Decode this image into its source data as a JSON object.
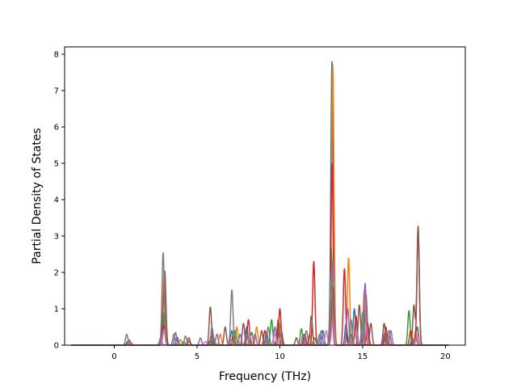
{
  "chart_data": {
    "type": "line",
    "title": "",
    "xlabel": "Frequency (THz)",
    "ylabel": "Partial Density of States",
    "xlim": [
      -3.0,
      21.2
    ],
    "ylim": [
      0,
      8.2
    ],
    "xticks": [
      0,
      5,
      10,
      15,
      20
    ],
    "yticks": [
      0,
      1,
      2,
      3,
      4,
      5,
      6,
      7,
      8
    ],
    "grid": false,
    "legend": "none",
    "x_range": [
      -2.6,
      20.2
    ],
    "sigma": 0.07,
    "series": [
      {
        "color": "#1f77b4",
        "peaks": [
          [
            0.9,
            0.12
          ],
          [
            2.9,
            0.2
          ],
          [
            3.05,
            0.9
          ],
          [
            3.8,
            0.22
          ],
          [
            5.8,
            0.15
          ],
          [
            7.1,
            0.4
          ],
          [
            8.0,
            0.5
          ],
          [
            9.2,
            0.35
          ],
          [
            9.9,
            0.45
          ],
          [
            11.5,
            0.25
          ],
          [
            12.6,
            0.4
          ],
          [
            13.15,
            7.8
          ],
          [
            14.0,
            0.6
          ],
          [
            14.5,
            1.0
          ],
          [
            15.2,
            1.4
          ],
          [
            16.4,
            0.3
          ],
          [
            18.3,
            0.5
          ]
        ]
      },
      {
        "color": "#ff7f0e",
        "peaks": [
          [
            1.0,
            0.08
          ],
          [
            3.0,
            1.9
          ],
          [
            4.0,
            0.15
          ],
          [
            6.4,
            0.3
          ],
          [
            7.4,
            0.5
          ],
          [
            8.6,
            0.5
          ],
          [
            10.0,
            0.6
          ],
          [
            11.8,
            0.3
          ],
          [
            13.2,
            7.7
          ],
          [
            14.15,
            2.4
          ],
          [
            15.1,
            1.5
          ],
          [
            16.5,
            0.3
          ],
          [
            18.2,
            0.4
          ]
        ]
      },
      {
        "color": "#2ca02c",
        "peaks": [
          [
            0.8,
            0.1
          ],
          [
            3.0,
            0.75
          ],
          [
            4.2,
            0.1
          ],
          [
            6.0,
            0.2
          ],
          [
            7.3,
            0.4
          ],
          [
            8.3,
            0.35
          ],
          [
            9.5,
            0.7
          ],
          [
            11.3,
            0.45
          ],
          [
            12.1,
            0.2
          ],
          [
            13.1,
            2.7
          ],
          [
            14.3,
            0.3
          ],
          [
            15.0,
            0.6
          ],
          [
            16.3,
            0.2
          ],
          [
            17.8,
            0.95
          ]
        ]
      },
      {
        "color": "#d62728",
        "peaks": [
          [
            3.0,
            0.55
          ],
          [
            4.5,
            0.1
          ],
          [
            5.9,
            0.25
          ],
          [
            7.2,
            0.3
          ],
          [
            8.1,
            0.7
          ],
          [
            9.1,
            0.4
          ],
          [
            10.0,
            1.0
          ],
          [
            11.5,
            0.3
          ],
          [
            12.05,
            2.3
          ],
          [
            13.15,
            5.0
          ],
          [
            13.9,
            2.1
          ],
          [
            14.6,
            0.8
          ],
          [
            15.3,
            0.6
          ],
          [
            16.4,
            0.5
          ],
          [
            17.9,
            0.4
          ],
          [
            18.35,
            3.2
          ]
        ]
      },
      {
        "color": "#9467bd",
        "peaks": [
          [
            0.9,
            0.15
          ],
          [
            2.8,
            0.2
          ],
          [
            3.7,
            0.35
          ],
          [
            5.2,
            0.2
          ],
          [
            6.2,
            0.3
          ],
          [
            7.6,
            0.3
          ],
          [
            8.5,
            0.3
          ],
          [
            9.7,
            0.5
          ],
          [
            11.4,
            0.3
          ],
          [
            12.4,
            0.3
          ],
          [
            13.2,
            2.3
          ],
          [
            14.1,
            1.0
          ],
          [
            15.15,
            1.7
          ],
          [
            16.3,
            0.3
          ],
          [
            16.7,
            0.4
          ],
          [
            18.0,
            0.2
          ]
        ]
      },
      {
        "color": "#8c564b",
        "peaks": [
          [
            2.9,
            0.35
          ],
          [
            3.05,
            2.0
          ],
          [
            4.5,
            0.2
          ],
          [
            5.8,
            1.05
          ],
          [
            6.7,
            0.5
          ],
          [
            7.8,
            0.6
          ],
          [
            8.9,
            0.4
          ],
          [
            9.9,
            0.7
          ],
          [
            11.0,
            0.2
          ],
          [
            11.9,
            0.8
          ],
          [
            13.2,
            1.6
          ],
          [
            14.8,
            1.1
          ],
          [
            15.5,
            0.6
          ],
          [
            16.3,
            0.6
          ],
          [
            18.1,
            1.1
          ],
          [
            18.35,
            3.27
          ]
        ]
      },
      {
        "color": "#e377c2",
        "peaks": [
          [
            3.0,
            0.4
          ],
          [
            5.5,
            0.1
          ],
          [
            7.0,
            0.2
          ],
          [
            8.2,
            0.25
          ],
          [
            9.7,
            0.3
          ],
          [
            12.8,
            0.4
          ],
          [
            13.2,
            0.8
          ],
          [
            14.6,
            0.4
          ],
          [
            15.2,
            0.5
          ],
          [
            18.3,
            0.3
          ]
        ]
      },
      {
        "color": "#7f7f7f",
        "peaks": [
          [
            0.75,
            0.3
          ],
          [
            2.95,
            2.55
          ],
          [
            3.6,
            0.3
          ],
          [
            4.3,
            0.25
          ],
          [
            5.9,
            0.5
          ],
          [
            7.1,
            1.52
          ],
          [
            8.0,
            0.3
          ],
          [
            9.3,
            0.5
          ],
          [
            10.1,
            0.4
          ],
          [
            11.6,
            0.4
          ],
          [
            12.5,
            0.4
          ],
          [
            13.1,
            2.0
          ],
          [
            14.3,
            0.7
          ],
          [
            15.0,
            0.9
          ],
          [
            16.6,
            0.4
          ],
          [
            18.2,
            0.2
          ]
        ]
      }
    ]
  }
}
